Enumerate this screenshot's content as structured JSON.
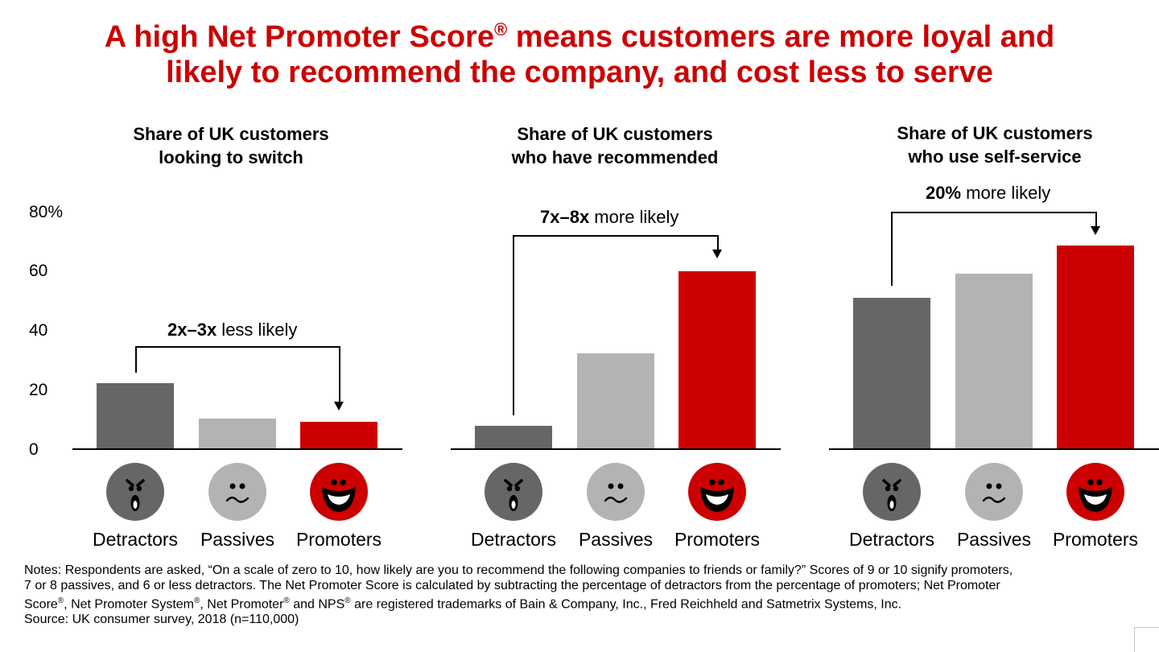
{
  "title": {
    "line1_pre": "A high Net Promoter Score",
    "line1_sup": "®",
    "line1_post": " means customers are more loyal and",
    "line2": "likely to recommend the company, and cost less to serve"
  },
  "colors": {
    "title": "#cc0000",
    "detractors": "#666666",
    "passives": "#b3b3b3",
    "promoters": "#cc0000"
  },
  "chart_data": [
    {
      "type": "bar",
      "title_line1": "Share of UK customers",
      "title_line2": "looking to switch",
      "categories": [
        "Detractors",
        "Passives",
        "Promoters"
      ],
      "values": [
        22,
        10,
        9
      ],
      "ylim": [
        0,
        80
      ],
      "yticks": [
        "0",
        "20",
        "40",
        "60",
        "80%"
      ],
      "annotation_bold": "2x–3x",
      "annotation_text": " less likely"
    },
    {
      "type": "bar",
      "title_line1": "Share of UK customers",
      "title_line2": "who have recommended",
      "categories": [
        "Detractors",
        "Passives",
        "Promoters"
      ],
      "values": [
        7.5,
        32,
        60
      ],
      "ylim": [
        0,
        80
      ],
      "annotation_bold": "7x–8x",
      "annotation_text": " more likely"
    },
    {
      "type": "bar",
      "title_line1": "Share of UK customers",
      "title_line2": "who use self-service",
      "categories": [
        "Detractors",
        "Passives",
        "Promoters"
      ],
      "values": [
        51,
        59,
        68.5
      ],
      "ylim": [
        0,
        80
      ],
      "annotation_bold": "20%",
      "annotation_text": " more likely"
    }
  ],
  "faces": [
    "detractor-face",
    "passive-face",
    "promoter-face"
  ],
  "notes": {
    "line1": "Notes: Respondents are asked, “On a scale of zero to 10, how likely are you to recommend the following companies to friends or family?” Scores of 9 or 10 signify promoters,",
    "line2": "7 or 8 passives, and 6 or less detractors. The Net Promoter Score is calculated by subtracting the percentage of detractors from the percentage of promoters; Net Promoter",
    "line3_a": "Score",
    "line3_b": ", Net Promoter System",
    "line3_c": ", Net Promoter",
    "line3_d": " and NPS",
    "line3_e": " are registered trademarks of Bain & Company, Inc., Fred Reichheld and Satmetrix Systems, Inc.",
    "reg": "®",
    "source": "Source: UK consumer survey, 2018 (n=110,000)"
  }
}
